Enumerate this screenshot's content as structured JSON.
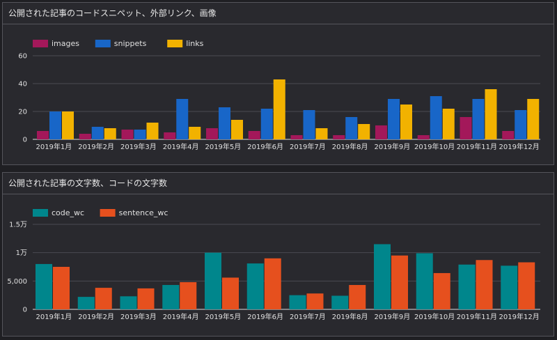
{
  "panels": [
    {
      "title": "公開された記事のコードスニペット、外部リンク、画像"
    },
    {
      "title": "公開された記事の文字数、コードの文字数"
    }
  ],
  "chart_data": [
    {
      "type": "bar",
      "categories": [
        "2019年1月",
        "2019年2月",
        "2019年3月",
        "2019年4月",
        "2019年5月",
        "2019年6月",
        "2019年7月",
        "2019年8月",
        "2019年9月",
        "2019年10月",
        "2019年11月",
        "2019年12月"
      ],
      "series": [
        {
          "name": "images",
          "color": "#a3185a",
          "values": [
            6,
            4,
            7,
            5,
            8,
            6,
            3,
            3,
            10,
            3,
            16,
            6
          ]
        },
        {
          "name": "snippets",
          "color": "#1866c8",
          "values": [
            20,
            9,
            7,
            29,
            23,
            22,
            21,
            16,
            29,
            31,
            29,
            21
          ]
        },
        {
          "name": "links",
          "color": "#f2b200",
          "values": [
            20,
            8,
            12,
            9,
            14,
            43,
            8,
            11,
            25,
            22,
            36,
            29
          ]
        }
      ],
      "yticks": [
        0,
        20,
        40,
        60
      ],
      "ytick_labels": [
        "0",
        "20",
        "40",
        "60"
      ],
      "ylim": [
        0,
        60
      ],
      "grid": true,
      "legend": "top-left"
    },
    {
      "type": "bar",
      "categories": [
        "2019年1月",
        "2019年2月",
        "2019年3月",
        "2019年4月",
        "2019年5月",
        "2019年6月",
        "2019年7月",
        "2019年8月",
        "2019年9月",
        "2019年10月",
        "2019年11月",
        "2019年12月"
      ],
      "series": [
        {
          "name": "code_wc",
          "color": "#00868c",
          "values": [
            8000,
            2200,
            2300,
            4300,
            10000,
            8100,
            2500,
            2400,
            11500,
            9900,
            7900,
            7700
          ]
        },
        {
          "name": "sentence_wc",
          "color": "#e6501e",
          "values": [
            7500,
            3800,
            3700,
            4800,
            5600,
            9000,
            2800,
            4300,
            9500,
            6400,
            8700,
            8300
          ]
        }
      ],
      "yticks": [
        0,
        5000,
        10000,
        15000
      ],
      "ytick_labels": [
        "0",
        "5,000",
        "1万",
        "1.5万"
      ],
      "ylim": [
        0,
        15000
      ],
      "grid": true,
      "legend": "top-left"
    }
  ]
}
